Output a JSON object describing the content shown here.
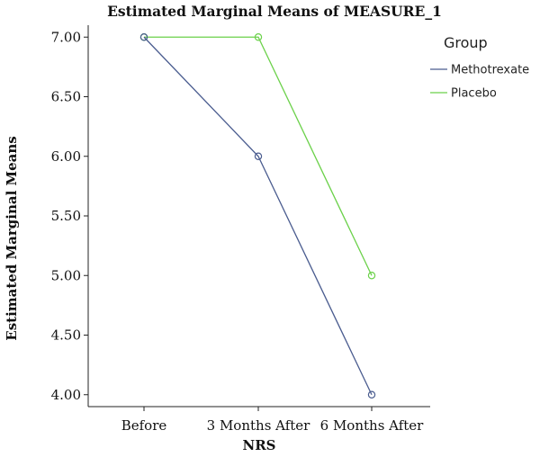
{
  "colors": {
    "methotrexate": "#4a5c8f",
    "placebo": "#6bd14a",
    "axis": "#222222"
  },
  "chart_data": {
    "type": "line",
    "title": "Estimated Marginal Means of MEASURE_1",
    "xlabel": "NRS",
    "ylabel": "Estimated Marginal Means",
    "categories": [
      "Before",
      "3 Months After",
      "6 Months After"
    ],
    "ylim": [
      3.9,
      7.1
    ],
    "yticks": [
      "4.00",
      "4.50",
      "5.00",
      "5.50",
      "6.00",
      "6.50",
      "7.00"
    ],
    "grid": false,
    "legend_title": "Group",
    "legend_position": "top-right",
    "series": [
      {
        "name": "Methotrexate",
        "values": [
          7.0,
          6.0,
          4.0
        ],
        "color": "#4a5c8f"
      },
      {
        "name": "Placebo",
        "values": [
          7.0,
          7.0,
          5.0
        ],
        "color": "#6bd14a"
      }
    ]
  }
}
